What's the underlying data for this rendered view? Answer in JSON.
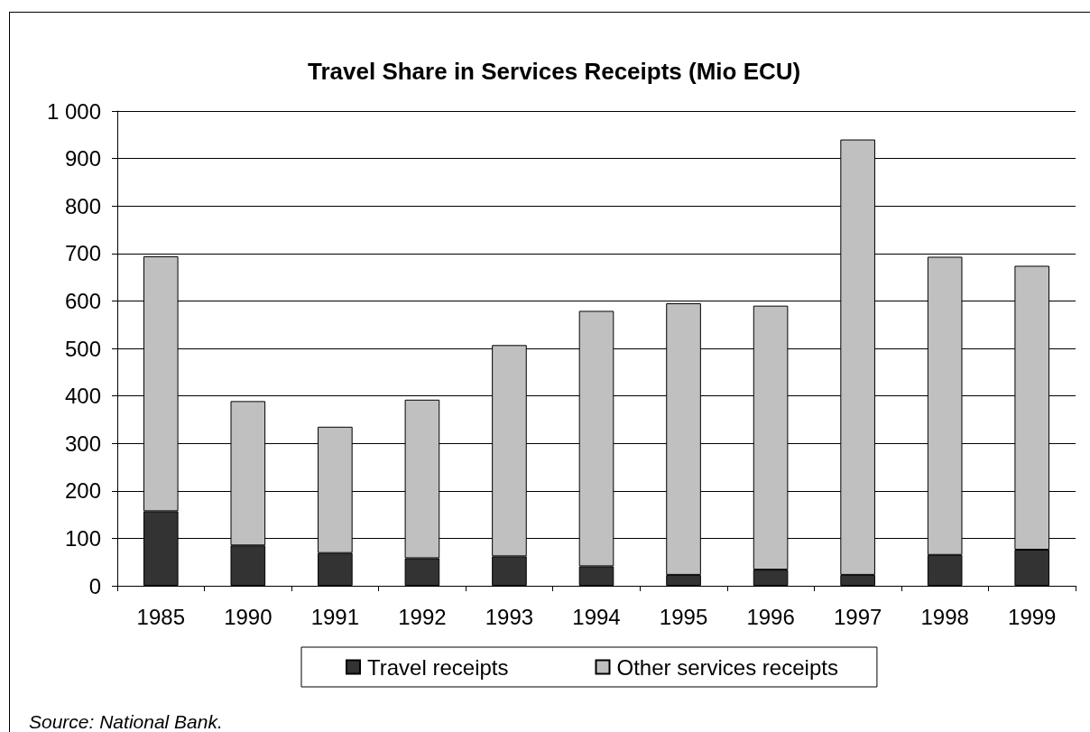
{
  "chart_data": {
    "type": "bar",
    "title": "Travel Share in Services Receipts (Mio ECU)",
    "categories": [
      "1985",
      "1990",
      "1991",
      "1992",
      "1993",
      "1994",
      "1995",
      "1996",
      "1997",
      "1998",
      "1999"
    ],
    "series": [
      {
        "name": "Travel receipts",
        "color": "#333333",
        "values": [
          157,
          85,
          69,
          58,
          62,
          41,
          23,
          34,
          23,
          65,
          76
        ]
      },
      {
        "name": "Other services receipts",
        "color": "#c0c0c0",
        "values": [
          537,
          304,
          266,
          334,
          445,
          538,
          572,
          556,
          917,
          628,
          598
        ]
      }
    ],
    "stacked": true,
    "ylim": [
      0,
      1000
    ],
    "yticks": [
      0,
      100,
      200,
      300,
      400,
      500,
      600,
      700,
      800,
      900,
      {
        "value": 1000,
        "label": "1 000"
      }
    ],
    "grid": "y",
    "legend": "bottom",
    "annotations": [
      "Source: National Bank."
    ]
  }
}
